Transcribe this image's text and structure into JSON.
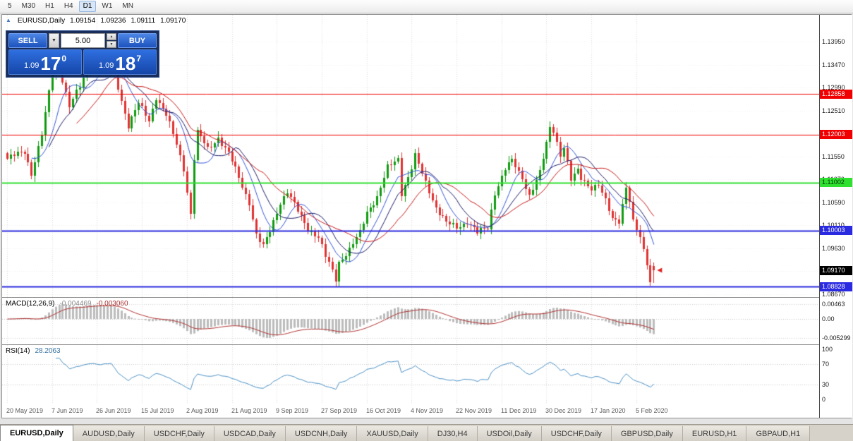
{
  "toolbar": {
    "periods": [
      "5",
      "M30",
      "H1",
      "H4",
      "D1",
      "W1",
      "MN"
    ],
    "active_period": "D1"
  },
  "chart_header": {
    "collapse_arrow": "▲",
    "symbol": "EURUSD,Daily",
    "open": "1.09154",
    "high": "1.09236",
    "low": "1.09111",
    "close": "1.09170"
  },
  "one_click": {
    "sell_label": "SELL",
    "buy_label": "BUY",
    "volume": "5.00",
    "sell_price_big": "1.09",
    "sell_price_pips": "17",
    "sell_price_sup": "0",
    "buy_price_big": "1.09",
    "buy_price_pips": "18",
    "buy_price_sup": "7"
  },
  "price_axis": {
    "ticks": [
      "1.13950",
      "1.13470",
      "1.12990",
      "1.12510",
      "1.12030",
      "1.11550",
      "1.11070",
      "1.10590",
      "1.10110",
      "1.09630",
      "1.09150",
      "1.08670"
    ]
  },
  "macd_panel": {
    "title": "MACD(12,26,9)",
    "value1": "-0.004469",
    "value2": "-0.003060",
    "axis_labels": [
      "0.00463",
      "0.00",
      "-0.005299"
    ]
  },
  "rsi_panel": {
    "title": "RSI(14)",
    "value": "28.2063",
    "axis_labels": [
      "100",
      "70",
      "30",
      "0"
    ]
  },
  "date_axis": [
    "20 May 2019",
    "7 Jun 2019",
    "26 Jun 2019",
    "15 Jul 2019",
    "2 Aug 2019",
    "21 Aug 2019",
    "9 Sep 2019",
    "27 Sep 2019",
    "16 Oct 2019",
    "4 Nov 2019",
    "22 Nov 2019",
    "11 Dec 2019",
    "30 Dec 2019",
    "17 Jan 2020",
    "5 Feb 2020"
  ],
  "tabs": {
    "items": [
      "EURUSD,Daily",
      "AUDUSD,Daily",
      "USDCHF,Daily",
      "USDCAD,Daily",
      "USDCNH,Daily",
      "XAUUSD,Daily",
      "DJ30,H4",
      "USDOil,Daily",
      "USDCHF,Daily",
      "GBPUSD,Daily",
      "EURUSD,H1",
      "GBPAUD,H1"
    ],
    "active_index": 0
  },
  "chart_data": {
    "type": "candlestick",
    "symbol": "EURUSD",
    "timeframe": "Daily",
    "price_scale": {
      "top": 1.1451,
      "bottom": 1.0861
    },
    "horizontal_lines": [
      {
        "value": 1.12858,
        "label": "1.12858",
        "color": "#F00000",
        "text_color": "#FFFFFF",
        "width": 1
      },
      {
        "value": 1.12003,
        "label": "1.12003",
        "color": "#F00000",
        "text_color": "#FFFFFF",
        "width": 1
      },
      {
        "value": 1.11002,
        "label": "1.11002",
        "color": "#30E030",
        "text_color": "#003000",
        "width": 2
      },
      {
        "value": 1.10003,
        "label": "1.10003",
        "color": "#2A2AE0",
        "text_color": "#FFFFFF",
        "width": 2
      },
      {
        "value": 1.08828,
        "label": "1.08828",
        "color": "#2A2AE0",
        "text_color": "#FFFFFF",
        "width": 2
      }
    ],
    "current_price": {
      "value": 1.0917,
      "label": "1.09170",
      "color": "#000000",
      "text_color": "#FFFFFF"
    },
    "candles": {
      "count": 188,
      "anchors": [
        [
          0,
          1.115
        ],
        [
          5,
          1.1165
        ],
        [
          7,
          1.112
        ],
        [
          10,
          1.12
        ],
        [
          13,
          1.133
        ],
        [
          15,
          1.1345
        ],
        [
          18,
          1.126
        ],
        [
          21,
          1.13
        ],
        [
          24,
          1.135
        ],
        [
          27,
          1.134
        ],
        [
          30,
          1.1355
        ],
        [
          32,
          1.13
        ],
        [
          35,
          1.122
        ],
        [
          38,
          1.1265
        ],
        [
          41,
          1.123
        ],
        [
          43,
          1.128
        ],
        [
          46,
          1.124
        ],
        [
          49,
          1.118
        ],
        [
          51,
          1.113
        ],
        [
          53,
          1.1035
        ],
        [
          54,
          1.115
        ],
        [
          55,
          1.1205
        ],
        [
          58,
          1.117
        ],
        [
          61,
          1.1195
        ],
        [
          64,
          1.116
        ],
        [
          67,
          1.111
        ],
        [
          70,
          1.106
        ],
        [
          72,
          1.099
        ],
        [
          74,
          1.0965
        ],
        [
          76,
          1.1
        ],
        [
          79,
          1.106
        ],
        [
          81,
          1.108
        ],
        [
          84,
          1.104
        ],
        [
          87,
          1.1005
        ],
        [
          90,
          1.0985
        ],
        [
          92,
          1.0945
        ],
        [
          95,
          1.09
        ],
        [
          96,
          1.0935
        ],
        [
          99,
          1.096
        ],
        [
          102,
          1.0995
        ],
        [
          104,
          1.104
        ],
        [
          107,
          1.107
        ],
        [
          110,
          1.113
        ],
        [
          113,
          1.115
        ],
        [
          114,
          1.108
        ],
        [
          117,
          1.113
        ],
        [
          118,
          1.1155
        ],
        [
          121,
          1.11
        ],
        [
          124,
          1.105
        ],
        [
          127,
          1.1015
        ],
        [
          130,
          1.1005
        ],
        [
          133,
          1.102
        ],
        [
          136,
          1.0995
        ],
        [
          139,
          1.1005
        ],
        [
          141,
          1.108
        ],
        [
          144,
          1.113
        ],
        [
          146,
          1.1145
        ],
        [
          149,
          1.111
        ],
        [
          151,
          1.1075
        ],
        [
          154,
          1.112
        ],
        [
          156,
          1.118
        ],
        [
          157,
          1.1215
        ],
        [
          158,
          1.121
        ],
        [
          160,
          1.116
        ],
        [
          161,
          1.1175
        ],
        [
          163,
          1.1105
        ],
        [
          165,
          1.1125
        ],
        [
          166,
          1.111
        ],
        [
          169,
          1.109
        ],
        [
          171,
          1.1095
        ],
        [
          173,
          1.106
        ],
        [
          175,
          1.1025
        ],
        [
          177,
          1.1022
        ],
        [
          179,
          1.109
        ],
        [
          180,
          1.106
        ],
        [
          181,
          1.102
        ],
        [
          182,
          1.1
        ],
        [
          183,
          1.0985
        ],
        [
          184,
          1.096
        ],
        [
          185,
          1.093
        ],
        [
          186,
          1.0893
        ],
        [
          187,
          1.0917
        ]
      ]
    },
    "moving_averages": [
      {
        "period": 8,
        "color": "#3355D8",
        "width": 1
      },
      {
        "period": 13,
        "color": "#1A1A66",
        "width": 1
      },
      {
        "period": 21,
        "color": "#C81818",
        "width": 1
      }
    ],
    "macd": {
      "fast": 12,
      "slow": 26,
      "signal": 9
    },
    "rsi": {
      "period": 14
    },
    "colors": {
      "up": "#119C11",
      "down": "#E03232",
      "macd_hist": "#BCBCBC",
      "macd_signal": "#B03030",
      "rsi_line": "#4A90C4",
      "grid_v": "#DCDCDC",
      "grid_h": "#EEEEEE"
    }
  }
}
